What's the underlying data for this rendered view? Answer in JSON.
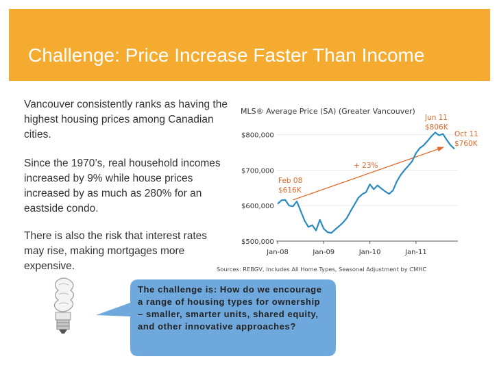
{
  "header": {
    "title": "Challenge: Price Increase Faster Than Income",
    "bg_color": "#f5ab2f"
  },
  "body": {
    "paragraph1": "Vancouver consistently ranks as having the highest housing prices among Canadian cities.",
    "paragraph2": "Since the 1970’s, real household incomes increased by 9% while house prices increased by as much as 280% for an eastside condo.",
    "paragraph3": "There is also the risk that interest rates may rise, making mortgages more expensive."
  },
  "callout": {
    "text": "The challenge is: How do we encourage a range of housing types for ownership – smaller, smarter units, shared equity, and other innovative approaches?",
    "bg_color": "#6fa8dc",
    "icon": "lightbulb-icon"
  },
  "chart_data": {
    "type": "line",
    "title": "MLS® Average Price (SA) (Greater Vancouver)",
    "source": "Sources: REBGV, Includes All Home Types, Seasonal Adjustment by CMHC",
    "x_tick_labels": [
      "Jan-08",
      "Jan-09",
      "Jan-10",
      "Jan-11"
    ],
    "y_tick_labels": [
      "$500,000",
      "$600,000",
      "$700,000",
      "$800,000"
    ],
    "y_ticks": [
      500000,
      600000,
      700000,
      800000
    ],
    "ylim": [
      500000,
      830000
    ],
    "xlim": [
      0,
      46
    ],
    "line_color": "#2a8ac0",
    "trend_color": "#e0692a",
    "series": [
      {
        "x": [
          0,
          1,
          2,
          3,
          4,
          5,
          6,
          7,
          8,
          9,
          10,
          11,
          12,
          13,
          14,
          15,
          16,
          17,
          18,
          19,
          20,
          21,
          22,
          23,
          24,
          25,
          26,
          27,
          28,
          29,
          30,
          31,
          32,
          33,
          34,
          35,
          36,
          37,
          38,
          39,
          40,
          41,
          42,
          43,
          44,
          45,
          46
        ],
        "values": [
          605000,
          615000,
          616000,
          600000,
          598000,
          612000,
          585000,
          558000,
          540000,
          545000,
          530000,
          560000,
          535000,
          525000,
          523000,
          533000,
          542000,
          552000,
          565000,
          585000,
          603000,
          622000,
          632000,
          638000,
          660000,
          646000,
          657000,
          648000,
          640000,
          633000,
          643000,
          668000,
          686000,
          700000,
          712000,
          725000,
          748000,
          762000,
          770000,
          782000,
          795000,
          806000,
          798000,
          802000,
          785000,
          770000,
          760000
        ]
      }
    ],
    "trend": {
      "x": [
        4,
        43
      ],
      "values": [
        616000,
        764000
      ]
    },
    "annotations": [
      {
        "text": "Jun 11",
        "subtext": "$806K"
      },
      {
        "text": "Oct 11",
        "subtext": "$760K"
      },
      {
        "text": "Feb 08",
        "subtext": "$616K"
      },
      {
        "text": "+ 23%"
      }
    ]
  }
}
